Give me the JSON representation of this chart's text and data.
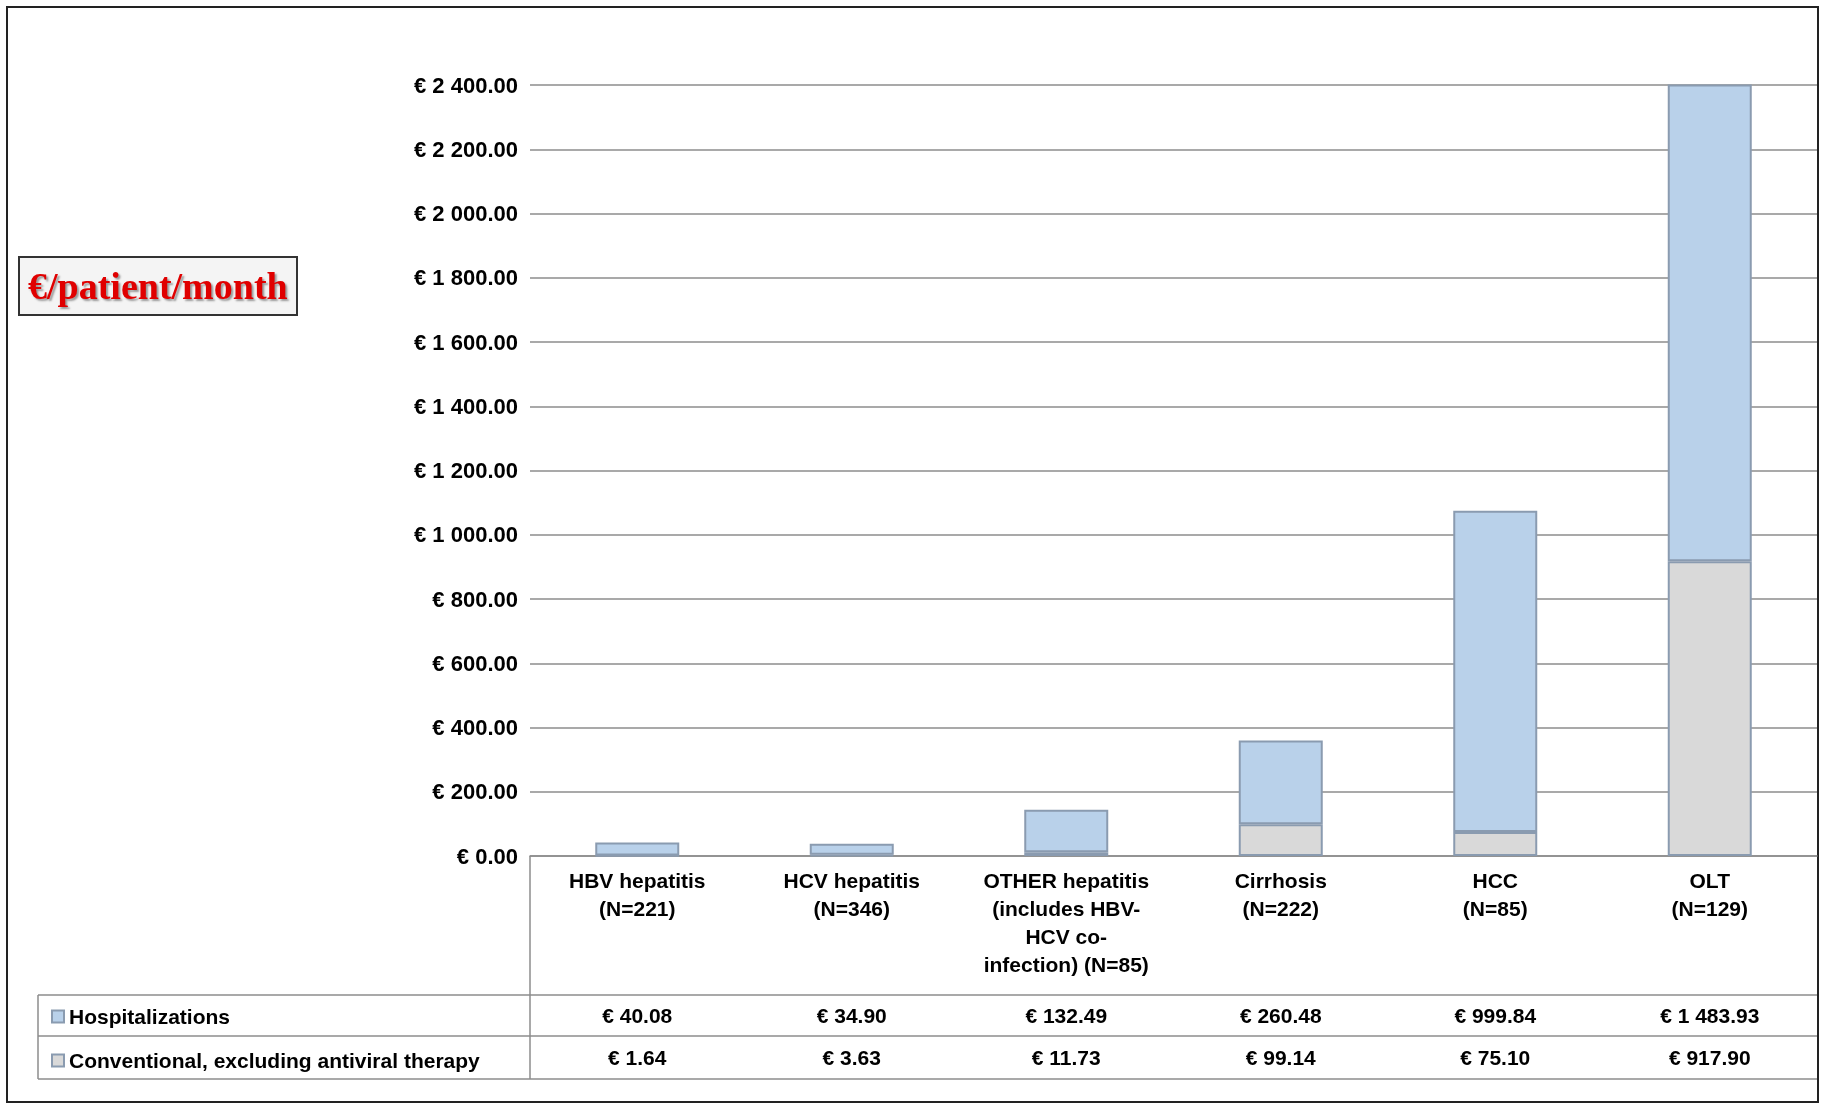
{
  "chart_data": {
    "type": "bar",
    "stacked": true,
    "ylabel": "€/patient/month",
    "categories": [
      "HBV hepatitis\n(N=221)",
      "HCV hepatitis\n(N=346)",
      "OTHER hepatitis\n(includes HBV-\nHCV co-\ninfection) (N=85)",
      "Cirrhosis\n(N=222)",
      "HCC\n(N=85)",
      "OLT\n(N=129)"
    ],
    "series": [
      {
        "name": "Conventional, excluding antiviral therapy",
        "color": "#d9d9d9",
        "values": [
          1.64,
          3.63,
          11.73,
          99.14,
          75.1,
          917.9
        ],
        "value_labels": [
          "€ 1.64",
          "€ 3.63",
          "€ 11.73",
          "€ 99.14",
          "€ 75.10",
          "€ 917.90"
        ]
      },
      {
        "name": "Hospitalizations",
        "color": "#b9d1ea",
        "values": [
          40.08,
          34.9,
          132.49,
          260.48,
          999.84,
          1483.93
        ],
        "value_labels": [
          "€ 40.08",
          "€ 34.90",
          "€ 132.49",
          "€ 260.48",
          "€ 999.84",
          "€ 1 483.93"
        ]
      }
    ],
    "ylim": [
      0,
      2410
    ],
    "yticks": [
      {
        "value": 0,
        "label": "€ 0.00"
      },
      {
        "value": 200,
        "label": "€ 200.00"
      },
      {
        "value": 400,
        "label": "€ 400.00"
      },
      {
        "value": 600,
        "label": "€ 600.00"
      },
      {
        "value": 800,
        "label": "€ 800.00"
      },
      {
        "value": 1000,
        "label": "€ 1 000.00"
      },
      {
        "value": 1200,
        "label": "€ 1 200.00"
      },
      {
        "value": 1400,
        "label": "€ 1 400.00"
      },
      {
        "value": 1600,
        "label": "€ 1 600.00"
      },
      {
        "value": 1800,
        "label": "€ 1 800.00"
      },
      {
        "value": 2000,
        "label": "€ 2 000.00"
      },
      {
        "value": 2200,
        "label": "€ 2 200.00"
      },
      {
        "value": 2400,
        "label": "€ 2 400.00"
      }
    ],
    "grid": "y",
    "legend": "bottom left"
  }
}
